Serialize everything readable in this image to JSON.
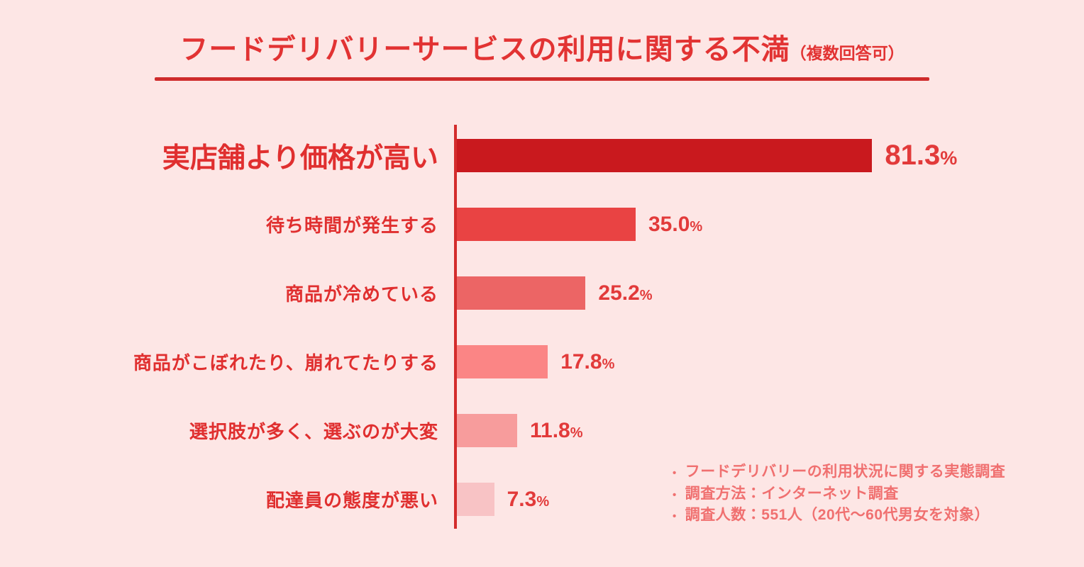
{
  "title": {
    "main": "フードデリバリーサービスの利用に関する不満",
    "sub": "（複数回答可）"
  },
  "chart_data": {
    "type": "bar",
    "orientation": "horizontal",
    "title": "フードデリバリーサービスの利用に関する不満（複数回答可）",
    "categories": [
      "実店舗より価格が高い",
      "待ち時間が発生する",
      "商品が冷めている",
      "商品がこぼれたり、崩れてたりする",
      "選択肢が多く、選ぶのが大変",
      "配達員の態度が悪い"
    ],
    "values": [
      81.3,
      35.0,
      25.2,
      17.8,
      11.8,
      7.3
    ],
    "unit": "%",
    "xlim": [
      0,
      100
    ],
    "grid": false,
    "legend": false,
    "highlight_index": 0,
    "bar_colors": [
      "#c9191e",
      "#e94343",
      "#ec6565",
      "#fb8585",
      "#f79c9c",
      "#f8c3c5"
    ]
  },
  "notes": {
    "items": [
      "フードデリバリーの利用状況に関する実態調査",
      "調査方法：インターネット調査",
      "調査人数：551人（20代〜60代男女を対象）"
    ]
  },
  "colors": {
    "background": "#fde6e5",
    "title": "#e23333",
    "underline": "#cf2b2b",
    "axis": "#d32c2c",
    "label": "#e02f2f",
    "value": "#e23a3a",
    "notes": "#f07070"
  }
}
